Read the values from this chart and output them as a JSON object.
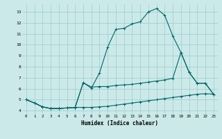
{
  "xlabel": "Humidex (Indice chaleur)",
  "background_color": "#cce9e9",
  "grid_color": "#99cccc",
  "line_color": "#006666",
  "xlim": [
    -0.5,
    23.5
  ],
  "ylim": [
    3.7,
    13.7
  ],
  "xticks": [
    0,
    1,
    2,
    3,
    4,
    5,
    6,
    7,
    8,
    9,
    10,
    11,
    12,
    13,
    14,
    15,
    16,
    17,
    18,
    19,
    20,
    21,
    22,
    23
  ],
  "yticks": [
    4,
    5,
    6,
    7,
    8,
    9,
    10,
    11,
    12,
    13
  ],
  "curve1_x": [
    0,
    1,
    2,
    3,
    4,
    5,
    6,
    7,
    8,
    9,
    10,
    11,
    12,
    13,
    14,
    15,
    16,
    17,
    18,
    19,
    20,
    21,
    22,
    23
  ],
  "curve1_y": [
    5.0,
    4.7,
    4.35,
    4.2,
    4.2,
    4.25,
    4.3,
    4.3,
    4.3,
    4.35,
    4.4,
    4.5,
    4.6,
    4.7,
    4.8,
    4.9,
    5.0,
    5.1,
    5.2,
    5.3,
    5.4,
    5.5,
    5.55,
    5.5
  ],
  "curve2_x": [
    0,
    1,
    2,
    3,
    4,
    5,
    6,
    7,
    8,
    9,
    10,
    11,
    12,
    13,
    14,
    15,
    16,
    17,
    18,
    19,
    20,
    21,
    22,
    23
  ],
  "curve2_y": [
    5.0,
    4.7,
    4.35,
    4.2,
    4.2,
    4.25,
    4.3,
    6.55,
    6.15,
    6.2,
    6.2,
    6.3,
    6.35,
    6.4,
    6.5,
    6.6,
    6.7,
    6.8,
    6.95,
    9.3,
    7.5,
    6.5,
    6.5,
    5.5
  ],
  "curve3_x": [
    0,
    1,
    2,
    3,
    4,
    5,
    6,
    7,
    8,
    9,
    10,
    11,
    12,
    13,
    14,
    15,
    16,
    17,
    18,
    19,
    20,
    21,
    22,
    23
  ],
  "curve3_y": [
    5.0,
    4.7,
    4.35,
    4.2,
    4.2,
    4.25,
    4.3,
    6.55,
    6.05,
    7.45,
    9.8,
    11.4,
    11.5,
    11.9,
    12.1,
    13.0,
    13.3,
    12.7,
    10.8,
    9.3,
    7.5,
    6.5,
    6.5,
    5.5
  ]
}
